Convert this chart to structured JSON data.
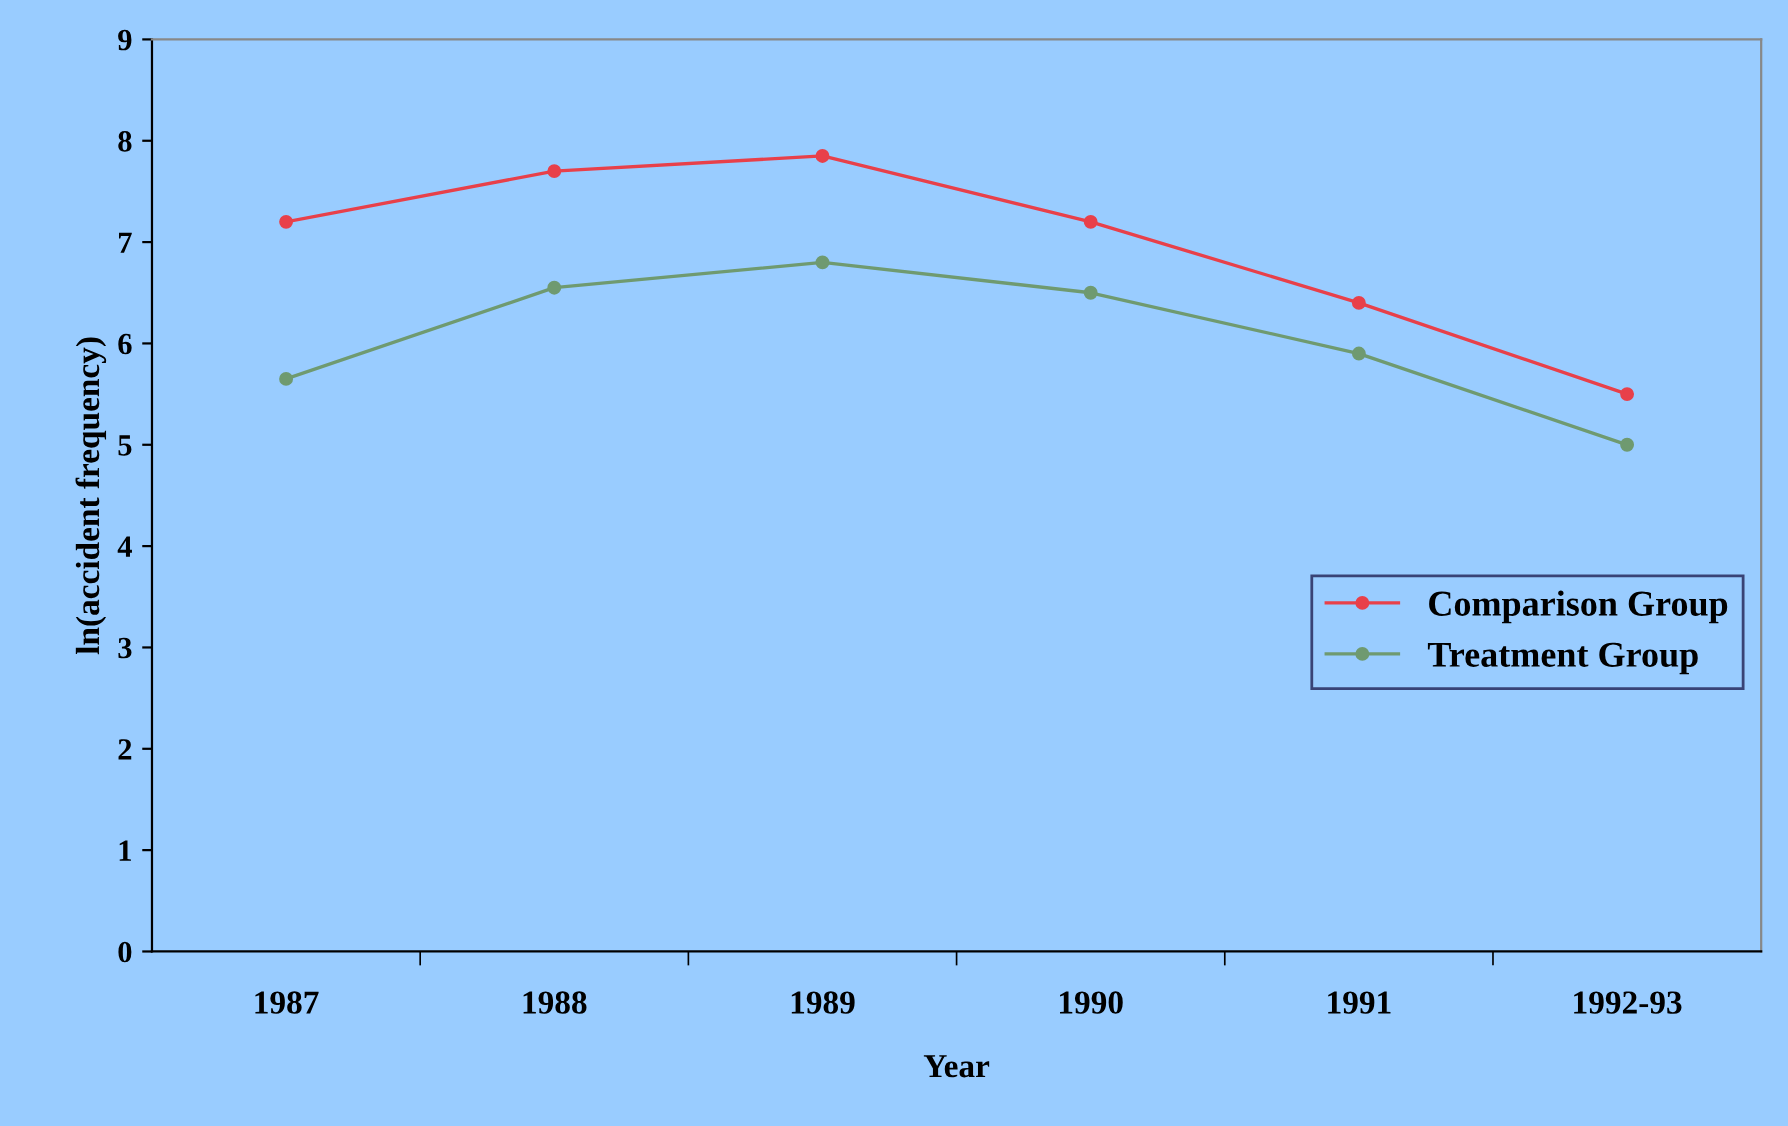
{
  "chart_data": {
    "type": "line",
    "xlabel": "Year",
    "ylabel": "ln(accident frequency)",
    "categories": [
      "1987",
      "1988",
      "1989",
      "1990",
      "1991",
      "1992-93"
    ],
    "series": [
      {
        "name": "Comparison Group",
        "color": "#e8404a",
        "values": [
          7.2,
          7.7,
          7.85,
          7.2,
          6.4,
          5.5
        ]
      },
      {
        "name": "Treatment Group",
        "color": "#6f9a70",
        "values": [
          5.65,
          6.55,
          6.8,
          6.5,
          5.9,
          5.0
        ]
      }
    ],
    "ylim": [
      0,
      9
    ],
    "yticks": [
      0,
      1,
      2,
      3,
      4,
      5,
      6,
      7,
      8,
      9
    ],
    "grid": false,
    "legend": "right",
    "marker": "circle",
    "line_style": "solid"
  }
}
